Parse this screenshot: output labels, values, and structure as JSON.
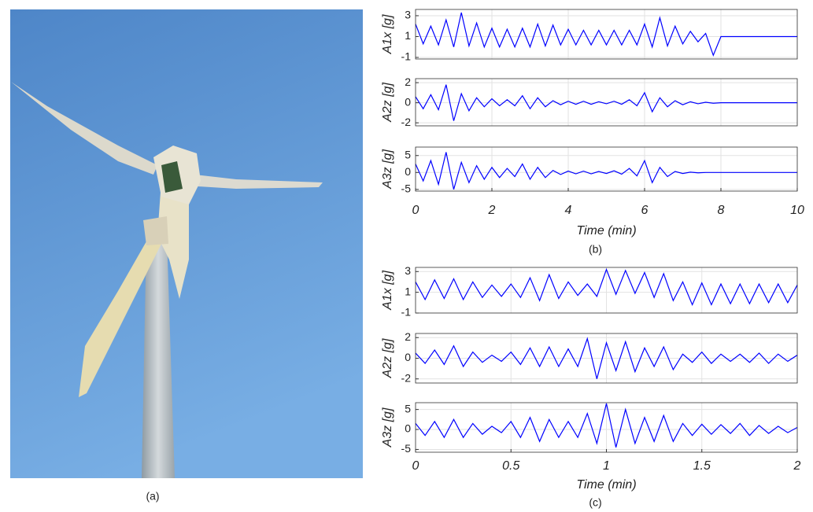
{
  "photo": {
    "caption": "(a)"
  },
  "chart_data": [
    {
      "type": "line",
      "caption": "(b)",
      "xlabel": "Time (min)",
      "xlim": [
        0,
        10
      ],
      "xticks": [
        0,
        2,
        4,
        6,
        8,
        10
      ],
      "color": "#0000ff",
      "grid": true,
      "panels": [
        {
          "ylabel": "A1x [g]",
          "ylim": [
            -1.15,
            3.6
          ],
          "yticks": [
            -1,
            1,
            3
          ],
          "x": [
            0,
            0.2,
            0.4,
            0.6,
            0.8,
            1,
            1.2,
            1.4,
            1.6,
            1.8,
            2,
            2.2,
            2.4,
            2.6,
            2.8,
            3,
            3.2,
            3.4,
            3.6,
            3.8,
            4,
            4.2,
            4.4,
            4.6,
            4.8,
            5,
            5.2,
            5.4,
            5.6,
            5.8,
            6,
            6.2,
            6.4,
            6.6,
            6.8,
            7,
            7.2,
            7.4,
            7.6,
            7.8,
            8,
            10
          ],
          "values": [
            2.2,
            0.3,
            2.0,
            0.2,
            2.6,
            0.0,
            3.3,
            0.1,
            2.3,
            0.0,
            1.8,
            0.0,
            1.7,
            0.0,
            1.8,
            0.0,
            2.2,
            0.1,
            2.1,
            0.2,
            1.7,
            0.2,
            1.6,
            0.2,
            1.6,
            0.2,
            1.6,
            0.2,
            1.6,
            0.2,
            2.2,
            0.0,
            2.8,
            0.1,
            2.0,
            0.3,
            1.5,
            0.5,
            1.3,
            -0.8,
            1.0,
            1.0
          ]
        },
        {
          "ylabel": "A2z [g]",
          "ylim": [
            -2.3,
            2.4
          ],
          "yticks": [
            -2,
            0,
            2
          ],
          "x": [
            0,
            0.2,
            0.4,
            0.6,
            0.8,
            1,
            1.2,
            1.4,
            1.6,
            1.8,
            2,
            2.2,
            2.4,
            2.6,
            2.8,
            3,
            3.2,
            3.4,
            3.6,
            3.8,
            4,
            4.2,
            4.4,
            4.6,
            4.8,
            5,
            5.2,
            5.4,
            5.6,
            5.8,
            6,
            6.2,
            6.4,
            6.6,
            6.8,
            7,
            7.2,
            7.4,
            7.6,
            7.8,
            8,
            10
          ],
          "values": [
            0.6,
            -0.6,
            0.8,
            -0.7,
            1.8,
            -1.8,
            0.9,
            -0.8,
            0.5,
            -0.4,
            0.4,
            -0.3,
            0.3,
            -0.3,
            0.7,
            -0.6,
            0.5,
            -0.4,
            0.2,
            -0.2,
            0.15,
            -0.15,
            0.15,
            -0.15,
            0.1,
            -0.1,
            0.15,
            -0.15,
            0.3,
            -0.3,
            1.0,
            -0.9,
            0.5,
            -0.4,
            0.2,
            -0.2,
            0.1,
            -0.1,
            0.05,
            -0.05,
            0.0,
            0.0
          ]
        },
        {
          "ylabel": "A3z [g]",
          "ylim": [
            -5.5,
            7.5
          ],
          "yticks": [
            -5,
            0,
            5
          ],
          "x": [
            0,
            0.2,
            0.4,
            0.6,
            0.8,
            1,
            1.2,
            1.4,
            1.6,
            1.8,
            2,
            2.2,
            2.4,
            2.6,
            2.8,
            3,
            3.2,
            3.4,
            3.6,
            3.8,
            4,
            4.2,
            4.4,
            4.6,
            4.8,
            5,
            5.2,
            5.4,
            5.6,
            5.8,
            6,
            6.2,
            6.4,
            6.6,
            6.8,
            7,
            7.2,
            7.4,
            7.6,
            7.8,
            8,
            10
          ],
          "values": [
            2.5,
            -2.5,
            3.5,
            -3.5,
            6,
            -5,
            3,
            -3,
            2,
            -2,
            1.5,
            -1.5,
            1.2,
            -1.2,
            2.5,
            -2,
            1.5,
            -1.5,
            0.6,
            -0.6,
            0.4,
            -0.4,
            0.4,
            -0.4,
            0.3,
            -0.3,
            0.5,
            -0.5,
            1.2,
            -1,
            3.5,
            -3,
            1.5,
            -1.2,
            0.3,
            -0.3,
            0.1,
            -0.1,
            0,
            0,
            0,
            0
          ]
        }
      ]
    },
    {
      "type": "line",
      "caption": "(c)",
      "xlabel": "Time (min)",
      "xlim": [
        0,
        2
      ],
      "xticks": [
        0,
        0.5,
        1,
        1.5,
        2
      ],
      "color": "#0000ff",
      "grid": true,
      "panels": [
        {
          "ylabel": "A1x [g]",
          "ylim": [
            -1,
            3.4
          ],
          "yticks": [
            -1,
            1,
            3
          ],
          "x": [
            0,
            0.05,
            0.1,
            0.15,
            0.2,
            0.25,
            0.3,
            0.35,
            0.4,
            0.45,
            0.5,
            0.55,
            0.6,
            0.65,
            0.7,
            0.75,
            0.8,
            0.85,
            0.9,
            0.95,
            1,
            1.05,
            1.1,
            1.15,
            1.2,
            1.25,
            1.3,
            1.35,
            1.4,
            1.45,
            1.5,
            1.55,
            1.6,
            1.65,
            1.7,
            1.75,
            1.8,
            1.85,
            1.9,
            1.95,
            2
          ],
          "values": [
            2.0,
            0.3,
            2.2,
            0.4,
            2.3,
            0.3,
            2.0,
            0.5,
            1.7,
            0.6,
            1.8,
            0.5,
            2.4,
            0.2,
            2.7,
            0.4,
            2.0,
            0.7,
            1.8,
            0.6,
            3.2,
            0.8,
            3.1,
            0.9,
            2.9,
            0.5,
            2.8,
            0.2,
            2.0,
            -0.2,
            1.9,
            -0.2,
            1.8,
            -0.1,
            1.8,
            -0.1,
            1.8,
            0.0,
            1.8,
            0.0,
            1.7
          ]
        },
        {
          "ylabel": "A2z [g]",
          "ylim": [
            -2.4,
            2.4
          ],
          "yticks": [
            -2,
            0,
            2
          ],
          "x": [
            0,
            0.05,
            0.1,
            0.15,
            0.2,
            0.25,
            0.3,
            0.35,
            0.4,
            0.45,
            0.5,
            0.55,
            0.6,
            0.65,
            0.7,
            0.75,
            0.8,
            0.85,
            0.9,
            0.95,
            1,
            1.05,
            1.1,
            1.15,
            1.2,
            1.25,
            1.3,
            1.35,
            1.4,
            1.45,
            1.5,
            1.55,
            1.6,
            1.65,
            1.7,
            1.75,
            1.8,
            1.85,
            1.9,
            1.95,
            2
          ],
          "values": [
            0.5,
            -0.5,
            0.8,
            -0.6,
            1.2,
            -0.8,
            0.6,
            -0.4,
            0.3,
            -0.3,
            0.6,
            -0.6,
            1.0,
            -0.8,
            1.1,
            -0.8,
            0.9,
            -0.8,
            1.9,
            -2.0,
            1.5,
            -1.2,
            1.6,
            -1.3,
            1.0,
            -0.8,
            1.1,
            -1.1,
            0.4,
            -0.4,
            0.6,
            -0.5,
            0.4,
            -0.3,
            0.4,
            -0.4,
            0.5,
            -0.5,
            0.4,
            -0.3,
            0.3
          ]
        },
        {
          "ylabel": "A3z [g]",
          "ylim": [
            -5.7,
            6.7
          ],
          "yticks": [
            -5,
            0,
            5
          ],
          "x": [
            0,
            0.05,
            0.1,
            0.15,
            0.2,
            0.25,
            0.3,
            0.35,
            0.4,
            0.45,
            0.5,
            0.55,
            0.6,
            0.65,
            0.7,
            0.75,
            0.8,
            0.85,
            0.9,
            0.95,
            1,
            1.05,
            1.1,
            1.15,
            1.2,
            1.25,
            1.3,
            1.35,
            1.4,
            1.45,
            1.5,
            1.55,
            1.6,
            1.65,
            1.7,
            1.75,
            1.8,
            1.85,
            1.9,
            1.95,
            2
          ],
          "values": [
            1.5,
            -1.5,
            2,
            -2,
            2.5,
            -2,
            1.5,
            -1.2,
            0.8,
            -0.8,
            2.0,
            -2.0,
            3.0,
            -3.0,
            2.5,
            -2.0,
            2.0,
            -2.0,
            4.0,
            -3.5,
            6.5,
            -4.5,
            5.0,
            -3.5,
            3.0,
            -3.0,
            3.5,
            -3.0,
            1.5,
            -1.5,
            1.3,
            -1.2,
            1.2,
            -1.0,
            1.5,
            -1.5,
            1.0,
            -1.0,
            0.8,
            -0.8,
            0.5
          ]
        }
      ]
    }
  ]
}
